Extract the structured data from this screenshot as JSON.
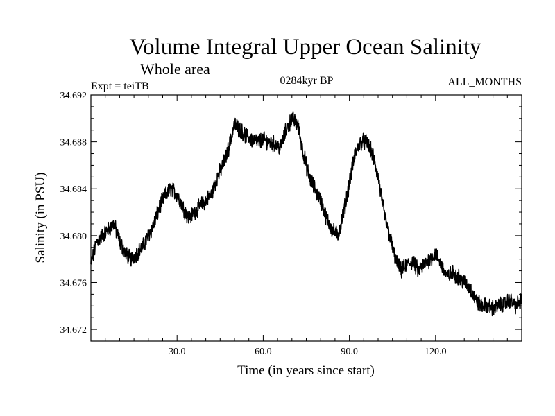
{
  "header": {
    "title": "Volume Integral Upper Ocean Salinity",
    "subtitle": "Whole area",
    "experiment": "Expt = teiTB",
    "period": "0284kyr BP",
    "months": "ALL_MONTHS"
  },
  "chart_data": {
    "type": "line",
    "title": "Volume Integral Upper Ocean Salinity",
    "subtitle": "Whole area",
    "xlabel": "Time (in years since start)",
    "ylabel": "Salinity (in PSU)",
    "xlim": [
      0,
      150
    ],
    "ylim": [
      34.671,
      34.692
    ],
    "x_ticks": [
      30,
      60,
      90,
      120
    ],
    "x_tick_labels": [
      "30.0",
      "60.0",
      "90.0",
      "120.0"
    ],
    "y_ticks": [
      34.672,
      34.676,
      34.68,
      34.684,
      34.688,
      34.692
    ],
    "y_tick_labels": [
      "34.672",
      "34.676",
      "34.680",
      "34.684",
      "34.688",
      "34.692"
    ],
    "line_color": "#000000",
    "series": [
      {
        "name": "Salinity",
        "x": [
          0,
          2,
          4,
          6,
          8,
          10,
          12,
          14,
          16,
          18,
          20,
          22,
          24,
          26,
          28,
          30,
          32,
          34,
          36,
          38,
          40,
          42,
          44,
          46,
          48,
          50,
          52,
          54,
          56,
          58,
          60,
          62,
          64,
          66,
          68,
          70,
          72,
          74,
          76,
          78,
          80,
          82,
          84,
          86,
          88,
          90,
          92,
          94,
          96,
          98,
          100,
          102,
          104,
          106,
          108,
          110,
          112,
          114,
          116,
          118,
          120,
          122,
          124,
          126,
          128,
          130,
          132,
          134,
          136,
          138,
          140,
          142,
          144,
          146,
          148,
          150
        ],
        "values": [
          34.6775,
          34.6795,
          34.68,
          34.6805,
          34.681,
          34.6795,
          34.6785,
          34.678,
          34.6785,
          34.679,
          34.68,
          34.681,
          34.6825,
          34.6835,
          34.684,
          34.6835,
          34.6825,
          34.6815,
          34.682,
          34.6825,
          34.683,
          34.6835,
          34.685,
          34.686,
          34.6875,
          34.6895,
          34.689,
          34.6885,
          34.6882,
          34.688,
          34.6882,
          34.688,
          34.6878,
          34.6875,
          34.689,
          34.69,
          34.6895,
          34.687,
          34.685,
          34.684,
          34.683,
          34.6815,
          34.6805,
          34.68,
          34.682,
          34.6845,
          34.687,
          34.688,
          34.688,
          34.687,
          34.685,
          34.682,
          34.68,
          34.678,
          34.677,
          34.6775,
          34.6778,
          34.677,
          34.6775,
          34.678,
          34.6785,
          34.6775,
          34.6765,
          34.6768,
          34.6765,
          34.676,
          34.6755,
          34.6745,
          34.674,
          34.674,
          34.6738,
          34.674,
          34.6742,
          34.6745,
          34.674,
          34.6745
        ]
      }
    ]
  }
}
